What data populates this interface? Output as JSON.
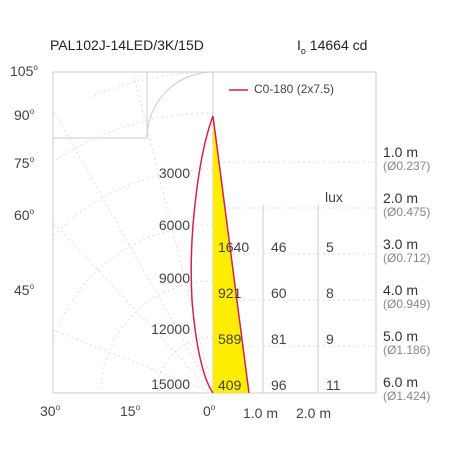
{
  "header": {
    "model": "PAL102J-14LED/3K/15D",
    "intensity_prefix": "I",
    "intensity_sub": "o",
    "intensity_value": "14664 cd"
  },
  "legend": {
    "label": "C0-180 (2x7.5)",
    "color": "#d4224f"
  },
  "colors": {
    "curve": "#d4224f",
    "beam_fill": "#ffee00",
    "beam_stroke": "#d4224f",
    "grid": "#cccccc"
  },
  "angle_labels": [
    {
      "value": "105",
      "sup": "o"
    },
    {
      "value": "90",
      "sup": "o"
    },
    {
      "value": "75",
      "sup": "o"
    },
    {
      "value": "60",
      "sup": "o"
    },
    {
      "value": "45",
      "sup": "o"
    }
  ],
  "bottom_axis": {
    "angles": [
      {
        "value": "30",
        "sup": "o"
      },
      {
        "value": "15",
        "sup": "o"
      },
      {
        "value": "0",
        "sup": "o"
      }
    ],
    "distances": [
      "1.0 m",
      "2.0 m"
    ]
  },
  "candela_ticks": [
    "3000",
    "6000",
    "9000",
    "12000",
    "15000"
  ],
  "lux_header": "lux",
  "table": [
    {
      "lux1": "1640",
      "diam": "46",
      "lux2": "5"
    },
    {
      "lux1": "921",
      "diam": "60",
      "lux2": "8"
    },
    {
      "lux1": "589",
      "diam": "81",
      "lux2": "9"
    },
    {
      "lux1": "409",
      "diam": "96",
      "lux2": "11"
    }
  ],
  "distances": [
    {
      "distance": "1.0 m",
      "diameter": "(Ø0.237)"
    },
    {
      "distance": "2.0 m",
      "diameter": "(Ø0.475)"
    },
    {
      "distance": "3.0 m",
      "diameter": "(Ø0.712)"
    },
    {
      "distance": "4.0 m",
      "diameter": "(Ø0.949)"
    },
    {
      "distance": "5.0 m",
      "diameter": "(Ø1.186)"
    },
    {
      "distance": "6.0 m",
      "diameter": "(Ø1.424)"
    }
  ],
  "chart_data": {
    "type": "polar",
    "title": "PAL102J-14LED/3K/15D",
    "series": [
      {
        "name": "C0-180 (2x7.5)",
        "max_intensity_cd": 14664
      }
    ],
    "radial_ticks_cd": [
      3000,
      6000,
      9000,
      12000,
      15000
    ],
    "angle_ticks_deg": [
      0,
      15,
      30,
      45,
      60,
      75,
      90,
      105
    ],
    "beam_table": [
      {
        "distance_m": 1.0,
        "diameter_m": 0.237
      },
      {
        "distance_m": 2.0,
        "diameter_m": 0.475
      },
      {
        "distance_m": 3.0,
        "diameter_m": 0.712,
        "lux_center": 1640,
        "diameter_left_col": 46,
        "lux_right_col": 5
      },
      {
        "distance_m": 4.0,
        "diameter_m": 0.949,
        "lux_center": 921,
        "diameter_left_col": 60,
        "lux_right_col": 8
      },
      {
        "distance_m": 5.0,
        "diameter_m": 1.186,
        "lux_center": 589,
        "diameter_left_col": 81,
        "lux_right_col": 9
      },
      {
        "distance_m": 6.0,
        "diameter_m": 1.424,
        "lux_center": 409,
        "diameter_left_col": 96,
        "lux_right_col": 11
      }
    ]
  }
}
